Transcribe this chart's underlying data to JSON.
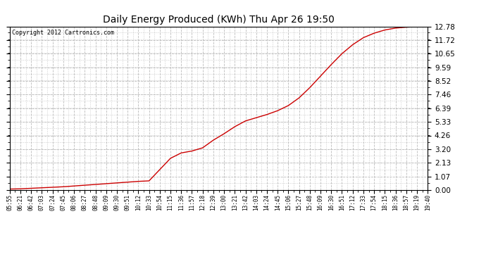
{
  "title": "Daily Energy Produced (KWh) Thu Apr 26 19:50",
  "copyright_text": "Copyright 2012 Cartronics.com",
  "line_color": "#cc0000",
  "background_color": "#ffffff",
  "plot_bg_color": "#ffffff",
  "grid_color": "#bbbbbb",
  "yticks": [
    0.0,
    1.07,
    2.13,
    3.2,
    4.26,
    5.33,
    6.39,
    7.46,
    8.52,
    9.59,
    10.65,
    11.72,
    12.78
  ],
  "ymax": 12.78,
  "xtick_labels": [
    "05:55",
    "06:21",
    "06:42",
    "07:03",
    "07:24",
    "07:45",
    "08:06",
    "08:27",
    "08:48",
    "09:09",
    "09:30",
    "09:51",
    "10:12",
    "10:33",
    "10:54",
    "11:15",
    "11:36",
    "11:57",
    "12:18",
    "12:39",
    "13:00",
    "13:21",
    "13:42",
    "14:03",
    "14:24",
    "14:45",
    "15:06",
    "15:27",
    "15:48",
    "16:09",
    "16:30",
    "16:51",
    "17:12",
    "17:33",
    "17:54",
    "18:15",
    "18:36",
    "18:57",
    "19:19",
    "19:40"
  ],
  "data_x": [
    0,
    1,
    2,
    3,
    4,
    5,
    6,
    7,
    8,
    9,
    10,
    11,
    12,
    13,
    14,
    15,
    16,
    17,
    18,
    19,
    20,
    21,
    22,
    23,
    24,
    25,
    26,
    27,
    28,
    29,
    30,
    31,
    32,
    33,
    34,
    35,
    36,
    37,
    38,
    39
  ],
  "data_y": [
    0.08,
    0.1,
    0.14,
    0.18,
    0.22,
    0.26,
    0.32,
    0.38,
    0.44,
    0.5,
    0.56,
    0.62,
    0.68,
    0.72,
    1.6,
    2.48,
    2.9,
    3.05,
    3.3,
    3.9,
    4.4,
    4.95,
    5.4,
    5.65,
    5.9,
    6.2,
    6.6,
    7.2,
    8.0,
    8.9,
    9.8,
    10.65,
    11.35,
    11.9,
    12.25,
    12.5,
    12.65,
    12.72,
    12.76,
    12.78
  ]
}
